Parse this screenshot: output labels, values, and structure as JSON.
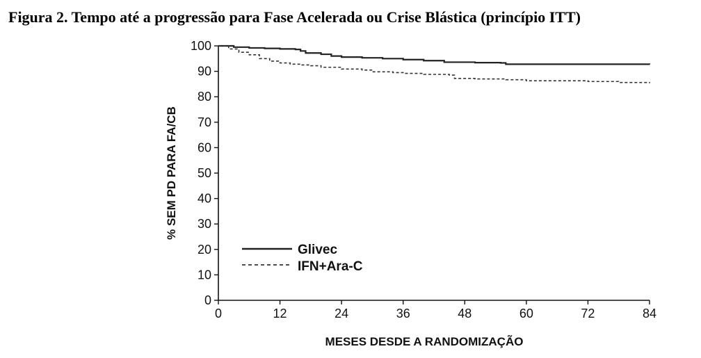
{
  "figure": {
    "title": "Figura 2. Tempo até a progressão para Fase Acelerada ou Crise Blástica (princípio ITT)"
  },
  "chart_data": {
    "type": "line",
    "title": "",
    "xlabel": "MESES DESDE A RANDOMIZAÇÃO",
    "ylabel": "% SEM PD PARA FA/CB",
    "xlim": [
      0,
      84
    ],
    "ylim": [
      0,
      100
    ],
    "xticks": [
      0,
      12,
      24,
      36,
      48,
      60,
      72,
      84
    ],
    "yticks": [
      0,
      10,
      20,
      30,
      40,
      50,
      60,
      70,
      80,
      90,
      100
    ],
    "grid": false,
    "legend": "inside-lower-left",
    "series": [
      {
        "name": "Glivec",
        "line_style": "solid",
        "color": "#222222",
        "points": [
          [
            0,
            100
          ],
          [
            3,
            99.5
          ],
          [
            6,
            99.2
          ],
          [
            9,
            99
          ],
          [
            12,
            98.8
          ],
          [
            15,
            98.6
          ],
          [
            16,
            98
          ],
          [
            17,
            97.2
          ],
          [
            20,
            96.7
          ],
          [
            22,
            96
          ],
          [
            24,
            95.6
          ],
          [
            28,
            95.3
          ],
          [
            32,
            95
          ],
          [
            36,
            94.6
          ],
          [
            40,
            94.2
          ],
          [
            44,
            93.6
          ],
          [
            50,
            93.4
          ],
          [
            55,
            93.3
          ],
          [
            56,
            92.8
          ],
          [
            60,
            92.8
          ],
          [
            70,
            92.8
          ],
          [
            84,
            92.7
          ]
        ]
      },
      {
        "name": "IFN+Ara-C",
        "line_style": "dashed",
        "color": "#333333",
        "points": [
          [
            0,
            100
          ],
          [
            2,
            98.8
          ],
          [
            4,
            97.5
          ],
          [
            6,
            96.5
          ],
          [
            8,
            95
          ],
          [
            10,
            94
          ],
          [
            12,
            93.3
          ],
          [
            14,
            92.8
          ],
          [
            16,
            92.5
          ],
          [
            18,
            92.2
          ],
          [
            20,
            91.6
          ],
          [
            24,
            90.9
          ],
          [
            28,
            90.5
          ],
          [
            30,
            89.8
          ],
          [
            34,
            89.5
          ],
          [
            36,
            89.2
          ],
          [
            40,
            88.8
          ],
          [
            45,
            88.5
          ],
          [
            46,
            87.2
          ],
          [
            50,
            87
          ],
          [
            56,
            86.7
          ],
          [
            60,
            86.3
          ],
          [
            72,
            86
          ],
          [
            78,
            85.6
          ],
          [
            84,
            85.3
          ]
        ]
      }
    ]
  }
}
